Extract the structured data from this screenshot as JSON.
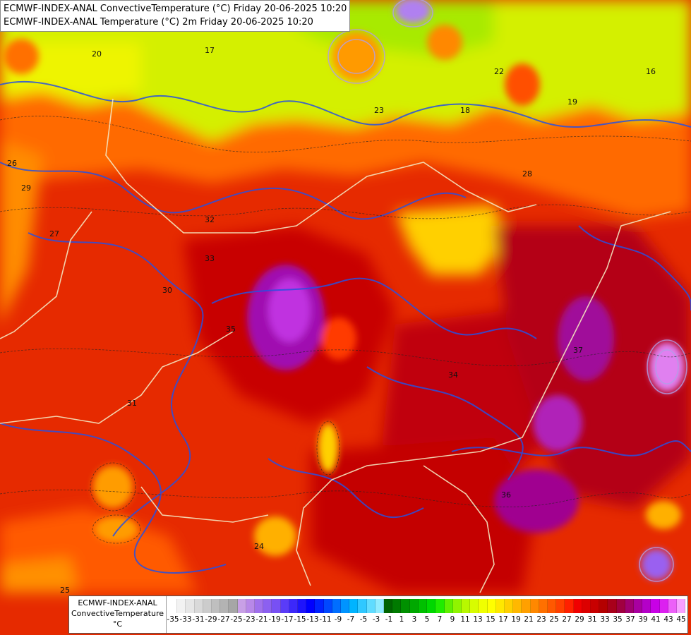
{
  "title": {
    "line1": "ECMWF-INDEX-ANAL ConvectiveTemperature (°C) Friday 20-06-2025 10:20",
    "line2": "ECMWF-INDEX-ANAL Temperature (°C) 2m Friday 20-06-2025 10:20"
  },
  "legend": {
    "line1": "ECMWF-INDEX-ANAL",
    "line2": "ConvectiveTemperature",
    "line3": "°C",
    "ticks": [
      "-35",
      "-33",
      "-31",
      "-29",
      "-27",
      "-25",
      "-23",
      "-21",
      "-19",
      "-17",
      "-15",
      "-13",
      "-11",
      "-9",
      "-7",
      "-5",
      "-3",
      "-1",
      "1",
      "3",
      "5",
      "7",
      "9",
      "11",
      "13",
      "15",
      "17",
      "19",
      "21",
      "23",
      "25",
      "27",
      "29",
      "31",
      "33",
      "35",
      "37",
      "39",
      "41",
      "43",
      "45"
    ],
    "colors": [
      "#ffffff",
      "#f2f2f2",
      "#e6e6e6",
      "#d9d9d9",
      "#cccccc",
      "#bfbfbf",
      "#b3b3b3",
      "#a6a6a6",
      "#c8a0e6",
      "#b888e8",
      "#a070ec",
      "#8c60f0",
      "#7850f4",
      "#5a3cf8",
      "#3c28fa",
      "#1e14fc",
      "#0000ff",
      "#0022ff",
      "#0048ff",
      "#006eff",
      "#0094ff",
      "#00b4ff",
      "#30c8ff",
      "#60dcff",
      "#90ecff",
      "#006400",
      "#007a00",
      "#009000",
      "#00a800",
      "#00c000",
      "#00d800",
      "#20ec00",
      "#60f000",
      "#90f400",
      "#b8f800",
      "#d8fc00",
      "#f0ff00",
      "#ffff00",
      "#ffe800",
      "#ffd000",
      "#ffb800",
      "#ffa000",
      "#ff8800",
      "#ff7000",
      "#ff5800",
      "#ff4000",
      "#ff2000",
      "#f00000",
      "#dc0000",
      "#c80000",
      "#b40000",
      "#a8001a",
      "#a00040",
      "#a00070",
      "#a800a0",
      "#b400c8",
      "#c800e6",
      "#dc20f0",
      "#ec60f8",
      "#f8a0ff"
    ]
  },
  "map_labels": [
    "17",
    "20",
    "22",
    "23",
    "26",
    "27",
    "28",
    "29",
    "30",
    "31",
    "32",
    "33",
    "34",
    "35",
    "36",
    "37",
    "18",
    "19",
    "16",
    "24",
    "25"
  ]
}
